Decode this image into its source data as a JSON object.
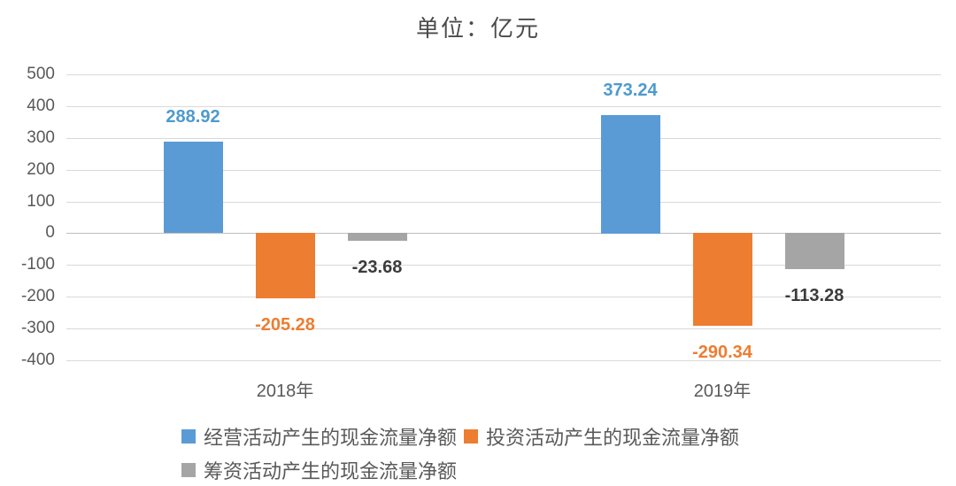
{
  "chart_data": {
    "type": "bar",
    "title": "单位：亿元",
    "categories": [
      "2018年",
      "2019年"
    ],
    "series": [
      {
        "name": "经营活动产生的现金流量净额",
        "color": "#5B9BD5",
        "label_color": "#4E9ACD",
        "values": [
          288.92,
          373.24
        ]
      },
      {
        "name": "投资活动产生的现金流量净额",
        "color": "#ED7D31",
        "label_color": "#ED7D31",
        "values": [
          -205.28,
          -290.34
        ]
      },
      {
        "name": "筹资活动产生的现金流量净额",
        "color": "#A5A5A5",
        "label_color": "#3B3B3B",
        "values": [
          -23.68,
          -113.28
        ]
      }
    ],
    "y_axis": {
      "min": -400,
      "max": 500,
      "step": 100,
      "ticks": [
        500,
        400,
        300,
        200,
        100,
        0,
        -100,
        -200,
        -300,
        -400
      ]
    },
    "grid": true,
    "legend_position": "bottom",
    "data_label_format": "2-decimals"
  },
  "style": {
    "gridline_color": "#d9d9d9",
    "zero_line_color": "#bfbfbf",
    "axis_text_color": "#595959",
    "title_color": "#4a4a4a",
    "background": "#ffffff"
  }
}
